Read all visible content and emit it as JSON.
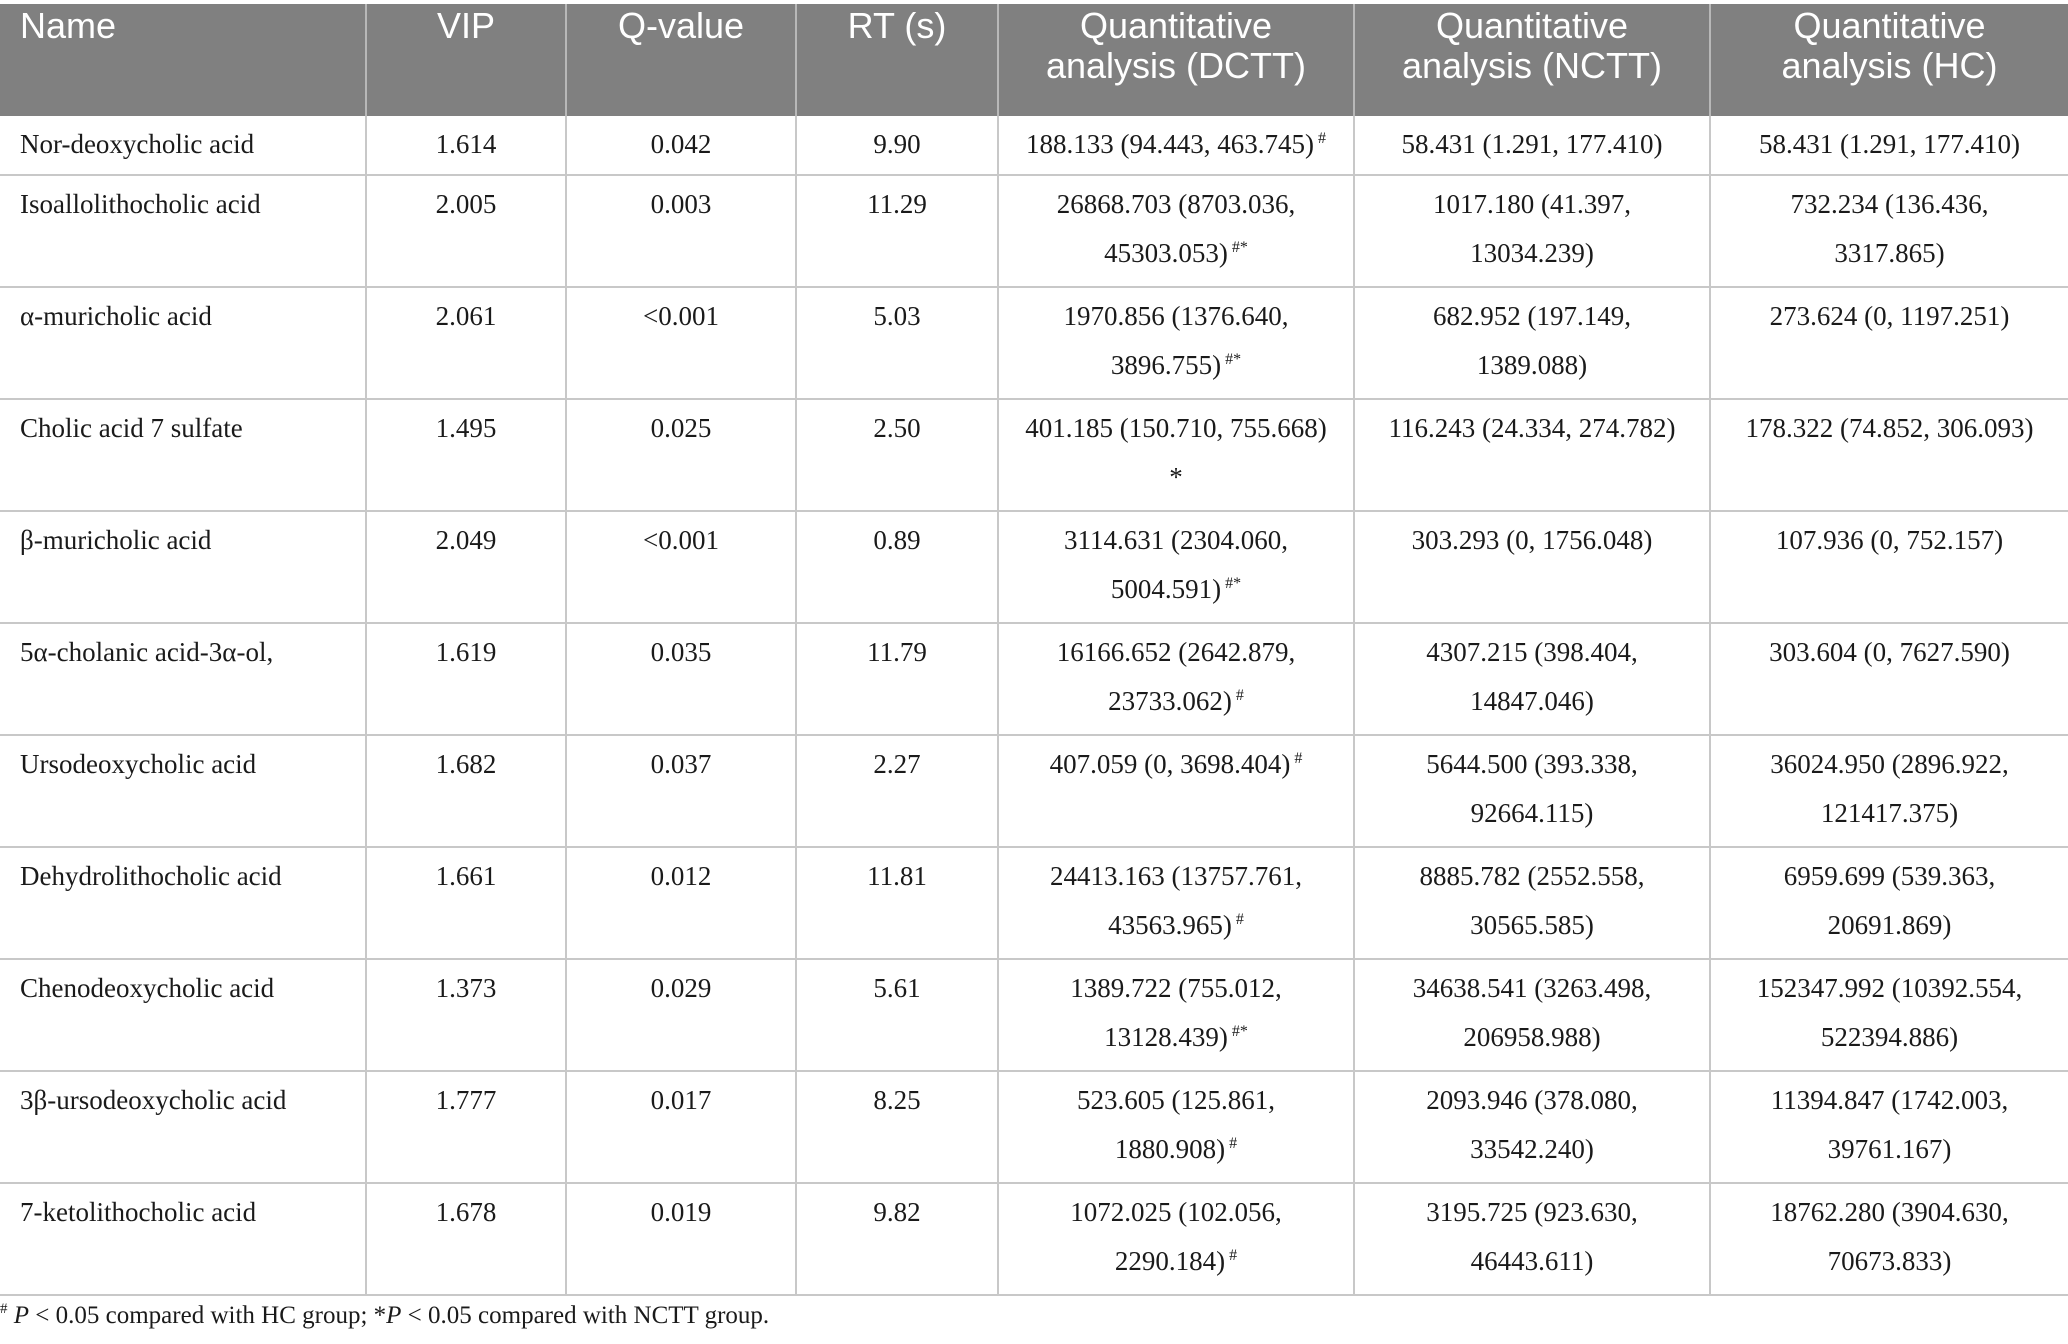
{
  "table": {
    "headers": [
      {
        "line1": "Name",
        "line2": ""
      },
      {
        "line1": "VIP",
        "line2": ""
      },
      {
        "line1": "Q-value",
        "line2": ""
      },
      {
        "line1": "RT (s)",
        "line2": ""
      },
      {
        "line1": "Quantitative",
        "line2": "analysis (DCTT)"
      },
      {
        "line1": "Quantitative",
        "line2": "analysis (NCTT)"
      },
      {
        "line1": "Quantitative",
        "line2": "analysis (HC)"
      }
    ],
    "rows": [
      {
        "name": "Nor-deoxycholic acid",
        "vip": "1.614",
        "q": "0.042",
        "rt": "9.90",
        "dctt": [
          "188.133 (94.443, 463.745)",
          ""
        ],
        "dctt_mark": "#",
        "nctt": [
          "58.431 (1.291, 177.410)",
          ""
        ],
        "hc": [
          "58.431 (1.291, 177.410)",
          ""
        ]
      },
      {
        "name": "Isoallolithocholic acid",
        "vip": "2.005",
        "q": "0.003",
        "rt": "11.29",
        "dctt": [
          "26868.703 (8703.036,",
          "45303.053)"
        ],
        "dctt_mark": "#*",
        "nctt": [
          "1017.180 (41.397,",
          "13034.239)"
        ],
        "hc": [
          "732.234 (136.436,",
          "3317.865)"
        ]
      },
      {
        "name": "α-muricholic acid",
        "vip": "2.061",
        "q": "<0.001",
        "rt": "5.03",
        "dctt": [
          "1970.856 (1376.640,",
          "3896.755)"
        ],
        "dctt_mark": "#*",
        "nctt": [
          "682.952 (197.149,",
          "1389.088)"
        ],
        "hc": [
          "273.624 (0, 1197.251)",
          ""
        ]
      },
      {
        "name": "Cholic acid 7 sulfate",
        "vip": "1.495",
        "q": "0.025",
        "rt": "2.50",
        "dctt": [
          "401.185 (150.710, 755.668)",
          "*"
        ],
        "dctt_mark": "",
        "nctt": [
          "116.243 (24.334, 274.782)",
          ""
        ],
        "hc": [
          "178.322 (74.852, 306.093)",
          ""
        ]
      },
      {
        "name": "β-muricholic acid",
        "vip": "2.049",
        "q": "<0.001",
        "rt": "0.89",
        "dctt": [
          "3114.631 (2304.060,",
          "5004.591)"
        ],
        "dctt_mark": "#*",
        "nctt": [
          "303.293 (0, 1756.048)",
          ""
        ],
        "hc": [
          "107.936 (0, 752.157)",
          ""
        ]
      },
      {
        "name": "5α-cholanic acid-3α-ol,",
        "vip": "1.619",
        "q": "0.035",
        "rt": "11.79",
        "dctt": [
          "16166.652 (2642.879,",
          "23733.062)"
        ],
        "dctt_mark": "#",
        "nctt": [
          "4307.215 (398.404,",
          "14847.046)"
        ],
        "hc": [
          "303.604 (0, 7627.590)",
          ""
        ]
      },
      {
        "name": "Ursodeoxycholic acid",
        "vip": "1.682",
        "q": "0.037",
        "rt": "2.27",
        "dctt": [
          "407.059 (0, 3698.404)",
          ""
        ],
        "dctt_mark": "#",
        "nctt": [
          "5644.500 (393.338,",
          "92664.115)"
        ],
        "hc": [
          "36024.950 (2896.922,",
          "121417.375)"
        ]
      },
      {
        "name": "Dehydrolithocholic acid",
        "vip": "1.661",
        "q": "0.012",
        "rt": "11.81",
        "dctt": [
          "24413.163 (13757.761,",
          "43563.965)"
        ],
        "dctt_mark": "#",
        "nctt": [
          "8885.782 (2552.558,",
          "30565.585)"
        ],
        "hc": [
          "6959.699 (539.363,",
          "20691.869)"
        ]
      },
      {
        "name": "Chenodeoxycholic acid",
        "vip": "1.373",
        "q": "0.029",
        "rt": "5.61",
        "dctt": [
          "1389.722 (755.012,",
          "13128.439)"
        ],
        "dctt_mark": "#*",
        "nctt": [
          "34638.541 (3263.498,",
          "206958.988)"
        ],
        "hc": [
          "152347.992 (10392.554,",
          "522394.886)"
        ]
      },
      {
        "name": "3β-ursodeoxycholic acid",
        "vip": "1.777",
        "q": "0.017",
        "rt": "8.25",
        "dctt": [
          "523.605 (125.861,",
          "1880.908)"
        ],
        "dctt_mark": "#",
        "nctt": [
          "2093.946 (378.080,",
          "33542.240)"
        ],
        "hc": [
          "11394.847 (1742.003,",
          "39761.167)"
        ]
      },
      {
        "name": "7-ketolithocholic acid",
        "vip": "1.678",
        "q": "0.019",
        "rt": "9.82",
        "dctt": [
          "1072.025 (102.056,",
          "2290.184)"
        ],
        "dctt_mark": "#",
        "nctt": [
          "3195.725 (923.630,",
          "46443.611)"
        ],
        "hc": [
          "18762.280 (3904.630,",
          "70673.833)"
        ]
      }
    ]
  },
  "footnote": {
    "mark1": "#",
    "p1": "P",
    "text1": " < 0.05 compared with HC group; *",
    "p2": "P",
    "text2": " < 0.05 compared with NCTT group."
  }
}
